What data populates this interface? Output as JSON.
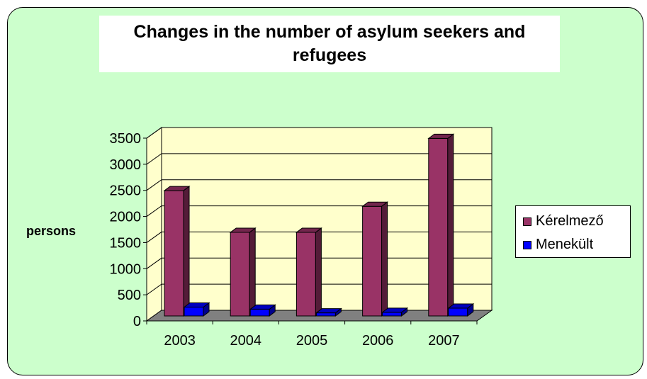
{
  "title": [
    "Changes in the number of asylum seekers and",
    "refugees"
  ],
  "colors": {
    "background": "#ccffcc",
    "plot_back": "#ffffcc",
    "floor": "#808080",
    "Kérelmező": "#993366",
    "Menekült": "#0000ff"
  },
  "chart_data": {
    "type": "bar",
    "title": "Changes in the number of asylum seekers and refugees",
    "ylabel": "persons",
    "xlabel": "",
    "categories": [
      "2003",
      "2004",
      "2005",
      "2006",
      "2007"
    ],
    "series": [
      {
        "name": "Kérelmező",
        "values": [
          2400,
          1600,
          1600,
          2100,
          3400
        ]
      },
      {
        "name": "Menekült",
        "values": [
          170,
          130,
          60,
          70,
          150
        ]
      }
    ],
    "ylim": [
      0,
      3500
    ],
    "yticks": [
      "0",
      "500",
      "1000",
      "1500",
      "2000",
      "2500",
      "3000",
      "3500"
    ],
    "grid": true,
    "legend": "right",
    "style": "3d-clustered-column"
  }
}
